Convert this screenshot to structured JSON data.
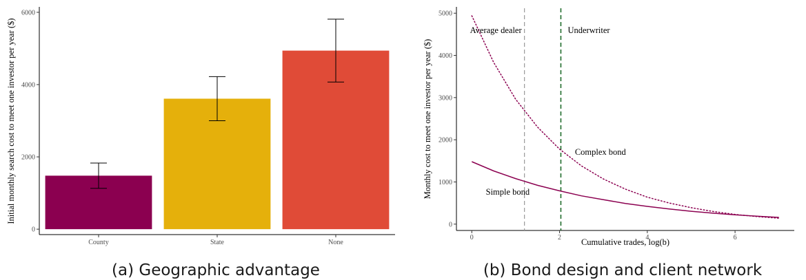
{
  "chart_data": [
    {
      "type": "bar",
      "caption": "(a) Geographic advantage",
      "ylabel": "Initial monthly search cost to meet one investor per year ($)",
      "xlabel": "",
      "categories": [
        "County",
        "State",
        "None"
      ],
      "values": [
        1480,
        3610,
        4940
      ],
      "error_low": [
        1130,
        3000,
        4070
      ],
      "error_high": [
        1830,
        4220,
        5810
      ],
      "colors": [
        "#8B0050",
        "#E5B00B",
        "#E04B37"
      ],
      "ylim": [
        -150,
        6150
      ],
      "yticks": [
        0,
        2000,
        4000,
        6000
      ],
      "grid": false
    },
    {
      "type": "line",
      "caption": "(b) Bond design and client network",
      "xlabel": "Cumulative trades, log(b)",
      "ylabel": "Monthly cost to meet one investor per year ($)",
      "xlim": [
        -0.35,
        7.35
      ],
      "ylim": [
        -150,
        5150
      ],
      "xticks": [
        0,
        2,
        4,
        6
      ],
      "yticks": [
        0,
        1000,
        2000,
        3000,
        4000,
        5000
      ],
      "grid": false,
      "series": [
        {
          "name": "Simple bond",
          "style": "solid",
          "color": "#8B0050",
          "x": [
            0,
            0.5,
            1,
            1.5,
            2,
            2.5,
            3,
            3.5,
            4,
            4.5,
            5,
            5.5,
            6,
            6.5,
            7
          ],
          "y": [
            1480,
            1260,
            1080,
            920,
            790,
            670,
            580,
            490,
            420,
            360,
            305,
            260,
            220,
            190,
            160
          ]
        },
        {
          "name": "Complex bond",
          "style": "dotted",
          "color": "#8B0050",
          "x": [
            0,
            0.5,
            1,
            1.5,
            2,
            2.5,
            3,
            3.5,
            4,
            4.5,
            5,
            5.5,
            6,
            6.5,
            7
          ],
          "y": [
            4940,
            3830,
            2960,
            2300,
            1780,
            1380,
            1070,
            830,
            640,
            500,
            390,
            300,
            230,
            180,
            140
          ]
        }
      ],
      "vlines": [
        {
          "label": "Average dealer",
          "x": 1.2,
          "color": "#999999",
          "style": "dashed"
        },
        {
          "label": "Underwriter",
          "x": 2.03,
          "color": "#1E6B2A",
          "style": "dashed"
        }
      ]
    }
  ]
}
